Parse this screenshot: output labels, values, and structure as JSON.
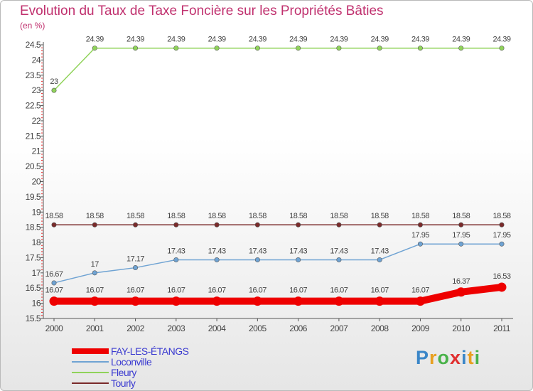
{
  "header": {
    "title": "Evolution du Taux de Taxe Foncière sur les Propriétés Bâties",
    "unit": "(en %)"
  },
  "chart_data": {
    "type": "line",
    "title": "Evolution du Taux de Taxe Foncière sur les Propriétés Bâties",
    "ylabel": "(en %)",
    "xlabel": "",
    "ylim": [
      15.5,
      24.5
    ],
    "yticks": [
      "15.5",
      "16",
      "16.5",
      "17",
      "17.5",
      "18",
      "18.5",
      "19",
      "19.5",
      "20",
      "20.5",
      "21",
      "21.5",
      "22",
      "22.5",
      "23",
      "23.5",
      "24",
      "24.5"
    ],
    "categories": [
      "2000",
      "2001",
      "2002",
      "2003",
      "2004",
      "2005",
      "2006",
      "2007",
      "2008",
      "2009",
      "2010",
      "2011"
    ],
    "series": [
      {
        "name": "Fleury",
        "color": "#90d35a",
        "values": [
          23,
          24.39,
          24.39,
          24.39,
          24.39,
          24.39,
          24.39,
          24.39,
          24.39,
          24.39,
          24.39,
          24.39
        ],
        "labels": [
          "23",
          "24.39",
          "24.39",
          "24.39",
          "24.39",
          "24.39",
          "24.39",
          "24.39",
          "24.39",
          "24.39",
          "24.39",
          "24.39"
        ]
      },
      {
        "name": "Tourly",
        "color": "#7a2a2a",
        "values": [
          18.58,
          18.58,
          18.58,
          18.58,
          18.58,
          18.58,
          18.58,
          18.58,
          18.58,
          18.58,
          18.58,
          18.58
        ],
        "labels": [
          "18.58",
          "18.58",
          "18.58",
          "18.58",
          "18.58",
          "18.58",
          "18.58",
          "18.58",
          "18.58",
          "18.58",
          "18.58",
          "18.58"
        ]
      },
      {
        "name": "Loconville",
        "color": "#6fa3d3",
        "values": [
          16.67,
          17,
          17.17,
          17.43,
          17.43,
          17.43,
          17.43,
          17.43,
          17.43,
          17.95,
          17.95,
          17.95
        ],
        "labels": [
          "16.67",
          "17",
          "17.17",
          "17.43",
          "17.43",
          "17.43",
          "17.43",
          "17.43",
          "17.43",
          "17.95",
          "17.95",
          "17.95"
        ]
      },
      {
        "name": "FAY-LES-ÉTANGS",
        "color": "#ee0000",
        "thick": true,
        "values": [
          16.07,
          16.07,
          16.07,
          16.07,
          16.07,
          16.07,
          16.07,
          16.07,
          16.07,
          16.07,
          16.37,
          16.53
        ],
        "labels": [
          "16.07",
          "16.07",
          "16.07",
          "16.07",
          "16.07",
          "16.07",
          "16.07",
          "16.07",
          "16.07",
          "16.07",
          "16.37",
          "16.53"
        ]
      }
    ],
    "legend_position": "bottom-left"
  },
  "legend": {
    "items": [
      {
        "label": "FAY-LES-ÉTANGS",
        "color": "#ee0000"
      },
      {
        "label": "Loconville",
        "color": "#6fa3d3"
      },
      {
        "label": "Fleury",
        "color": "#90d35a"
      },
      {
        "label": "Tourly",
        "color": "#7a2a2a"
      }
    ]
  },
  "logo": {
    "letters": [
      "P",
      "r",
      "o",
      "x",
      "i",
      "t",
      "i"
    ],
    "colors": [
      "#3a86c8",
      "#e8a020",
      "#49b24a",
      "#e03030",
      "#3a86c8",
      "#e8a020",
      "#49b24a"
    ]
  }
}
